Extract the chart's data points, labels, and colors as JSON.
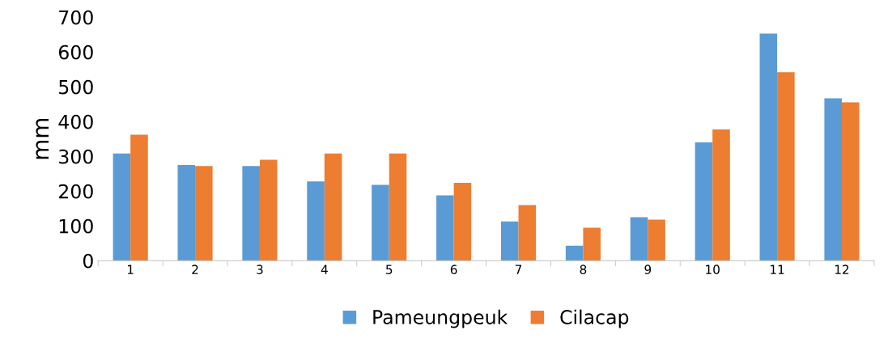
{
  "chart_data": {
    "type": "bar",
    "ylabel": "mm",
    "categories": [
      "1",
      "2",
      "3",
      "4",
      "5",
      "6",
      "7",
      "8",
      "9",
      "10",
      "11",
      "12"
    ],
    "series": [
      {
        "name": "Pameungpeuk",
        "color": "#5b9bd5",
        "values": [
          308,
          275,
          272,
          228,
          218,
          188,
          113,
          43,
          125,
          340,
          653,
          467
        ]
      },
      {
        "name": "Cilacap",
        "color": "#ed7d31",
        "values": [
          362,
          272,
          290,
          308,
          308,
          224,
          160,
          95,
          118,
          377,
          542,
          455
        ]
      }
    ],
    "ylim": [
      0,
      700
    ],
    "yticks": [
      0,
      100,
      200,
      300,
      400,
      500,
      600,
      700
    ],
    "grid": false,
    "legend": "bottom"
  }
}
